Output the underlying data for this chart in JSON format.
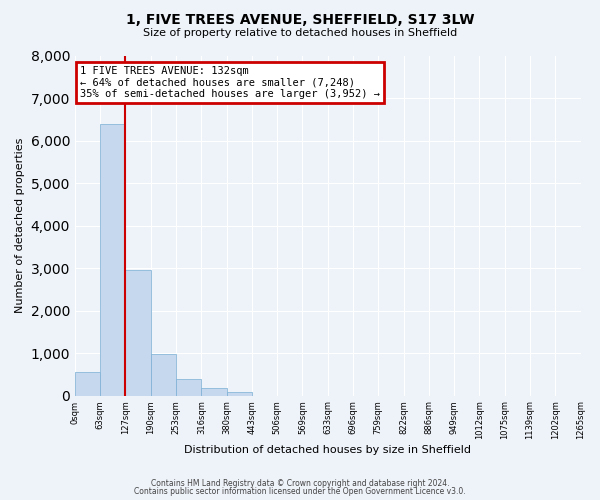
{
  "title": "1, FIVE TREES AVENUE, SHEFFIELD, S17 3LW",
  "subtitle": "Size of property relative to detached houses in Sheffield",
  "xlabel": "Distribution of detached houses by size in Sheffield",
  "ylabel": "Number of detached properties",
  "bar_values": [
    560,
    6400,
    2950,
    980,
    380,
    175,
    90,
    0,
    0,
    0,
    0,
    0,
    0,
    0,
    0,
    0,
    0,
    0,
    0,
    0
  ],
  "bin_labels": [
    "0sqm",
    "63sqm",
    "127sqm",
    "190sqm",
    "253sqm",
    "316sqm",
    "380sqm",
    "443sqm",
    "506sqm",
    "569sqm",
    "633sqm",
    "696sqm",
    "759sqm",
    "822sqm",
    "886sqm",
    "949sqm",
    "1012sqm",
    "1075sqm",
    "1139sqm",
    "1202sqm",
    "1265sqm"
  ],
  "bar_color": "#c5d8ed",
  "bar_edge_color": "#7aafd4",
  "property_line_x": 2,
  "property_line_color": "#cc0000",
  "ylim": [
    0,
    8000
  ],
  "yticks": [
    0,
    1000,
    2000,
    3000,
    4000,
    5000,
    6000,
    7000,
    8000
  ],
  "annotation_title": "1 FIVE TREES AVENUE: 132sqm",
  "annotation_line1": "← 64% of detached houses are smaller (7,248)",
  "annotation_line2": "35% of semi-detached houses are larger (3,952) →",
  "annotation_box_color": "#cc0000",
  "footer_line1": "Contains HM Land Registry data © Crown copyright and database right 2024.",
  "footer_line2": "Contains public sector information licensed under the Open Government Licence v3.0.",
  "bg_color": "#eef2f9",
  "grid_color": "#ffffff"
}
